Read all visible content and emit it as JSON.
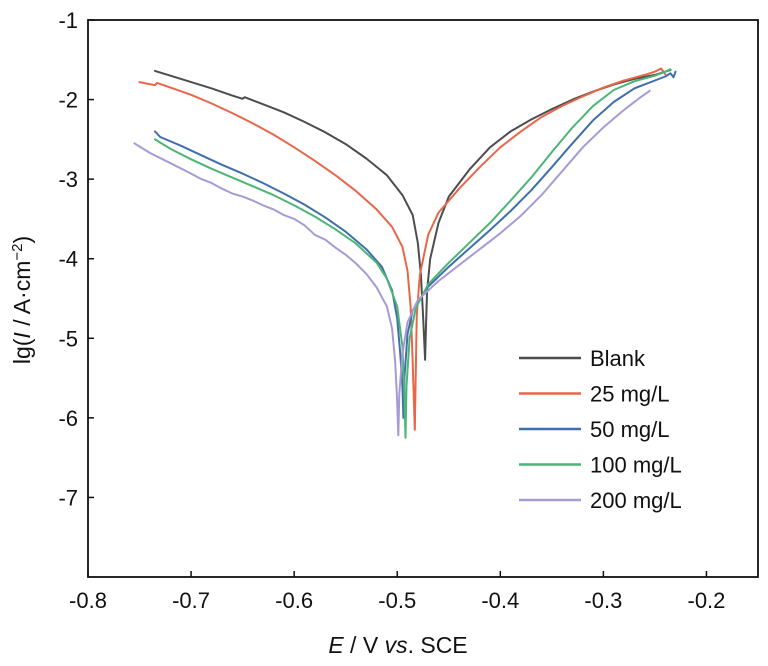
{
  "chart_data": {
    "type": "line",
    "xlabel": {
      "italic": "E",
      "rest1": " / V ",
      "italic2": "vs",
      "rest2": ". SCE"
    },
    "ylabel": {
      "pre": "lg(",
      "italic": "I",
      "mid": " / A·cm",
      "sup": "−2",
      "post": ")"
    },
    "xlim": [
      -0.8,
      -0.15
    ],
    "ylim": [
      -8,
      -1
    ],
    "xticks": [
      -0.8,
      -0.7,
      -0.6,
      -0.5,
      -0.4,
      -0.3,
      -0.2
    ],
    "xtick_labels": [
      "-0.8",
      "-0.7",
      "-0.6",
      "-0.5",
      "-0.4",
      "-0.3",
      "-0.2"
    ],
    "yticks": [
      -1,
      -2,
      -3,
      -4,
      -5,
      -6,
      -7
    ],
    "ytick_labels": [
      "-1",
      "-2",
      "-3",
      "-4",
      "-5",
      "-6",
      "-7"
    ],
    "grid": false,
    "legend_position": "bottom-right",
    "series": [
      {
        "name": "Blank",
        "color": "#4d4d4d",
        "points": [
          [
            -0.735,
            -1.64
          ],
          [
            -0.72,
            -1.7
          ],
          [
            -0.7,
            -1.78
          ],
          [
            -0.68,
            -1.86
          ],
          [
            -0.66,
            -1.95
          ],
          [
            -0.65,
            -1.99
          ],
          [
            -0.648,
            -1.97
          ],
          [
            -0.63,
            -2.06
          ],
          [
            -0.61,
            -2.16
          ],
          [
            -0.59,
            -2.28
          ],
          [
            -0.57,
            -2.41
          ],
          [
            -0.55,
            -2.56
          ],
          [
            -0.53,
            -2.74
          ],
          [
            -0.51,
            -2.95
          ],
          [
            -0.495,
            -3.2
          ],
          [
            -0.485,
            -3.45
          ],
          [
            -0.48,
            -3.8
          ],
          [
            -0.477,
            -4.2
          ],
          [
            -0.475,
            -4.7
          ],
          [
            -0.473,
            -5.27
          ],
          [
            -0.472,
            -4.8
          ],
          [
            -0.471,
            -4.4
          ],
          [
            -0.468,
            -4.0
          ],
          [
            -0.46,
            -3.55
          ],
          [
            -0.45,
            -3.22
          ],
          [
            -0.43,
            -2.88
          ],
          [
            -0.41,
            -2.6
          ],
          [
            -0.39,
            -2.4
          ],
          [
            -0.37,
            -2.25
          ],
          [
            -0.35,
            -2.12
          ],
          [
            -0.33,
            -2.0
          ],
          [
            -0.31,
            -1.9
          ],
          [
            -0.29,
            -1.81
          ],
          [
            -0.27,
            -1.74
          ],
          [
            -0.25,
            -1.69
          ],
          [
            -0.24,
            -1.65
          ],
          [
            -0.235,
            -1.63
          ]
        ]
      },
      {
        "name": "25 mg/L",
        "color": "#e8664a",
        "points": [
          [
            -0.75,
            -1.78
          ],
          [
            -0.735,
            -1.82
          ],
          [
            -0.733,
            -1.79
          ],
          [
            -0.72,
            -1.85
          ],
          [
            -0.7,
            -1.94
          ],
          [
            -0.68,
            -2.05
          ],
          [
            -0.66,
            -2.17
          ],
          [
            -0.64,
            -2.3
          ],
          [
            -0.62,
            -2.44
          ],
          [
            -0.6,
            -2.6
          ],
          [
            -0.58,
            -2.77
          ],
          [
            -0.56,
            -2.95
          ],
          [
            -0.54,
            -3.15
          ],
          [
            -0.52,
            -3.38
          ],
          [
            -0.505,
            -3.6
          ],
          [
            -0.495,
            -3.85
          ],
          [
            -0.49,
            -4.15
          ],
          [
            -0.487,
            -4.6
          ],
          [
            -0.485,
            -5.3
          ],
          [
            -0.483,
            -6.15
          ],
          [
            -0.482,
            -5.4
          ],
          [
            -0.481,
            -4.7
          ],
          [
            -0.478,
            -4.2
          ],
          [
            -0.47,
            -3.7
          ],
          [
            -0.46,
            -3.42
          ],
          [
            -0.44,
            -3.12
          ],
          [
            -0.42,
            -2.85
          ],
          [
            -0.4,
            -2.6
          ],
          [
            -0.38,
            -2.4
          ],
          [
            -0.36,
            -2.22
          ],
          [
            -0.34,
            -2.08
          ],
          [
            -0.32,
            -1.96
          ],
          [
            -0.3,
            -1.85
          ],
          [
            -0.28,
            -1.76
          ],
          [
            -0.26,
            -1.69
          ],
          [
            -0.25,
            -1.65
          ],
          [
            -0.244,
            -1.61
          ],
          [
            -0.24,
            -1.68
          ]
        ]
      },
      {
        "name": "50 mg/L",
        "color": "#3f6faa",
        "points": [
          [
            -0.735,
            -2.4
          ],
          [
            -0.73,
            -2.47
          ],
          [
            -0.71,
            -2.58
          ],
          [
            -0.69,
            -2.7
          ],
          [
            -0.67,
            -2.82
          ],
          [
            -0.65,
            -2.93
          ],
          [
            -0.63,
            -3.05
          ],
          [
            -0.61,
            -3.18
          ],
          [
            -0.59,
            -3.32
          ],
          [
            -0.57,
            -3.48
          ],
          [
            -0.55,
            -3.66
          ],
          [
            -0.53,
            -3.88
          ],
          [
            -0.515,
            -4.1
          ],
          [
            -0.505,
            -4.4
          ],
          [
            -0.5,
            -4.75
          ],
          [
            -0.497,
            -5.2
          ],
          [
            -0.495,
            -5.6
          ],
          [
            -0.494,
            -6.0
          ],
          [
            -0.493,
            -5.5
          ],
          [
            -0.49,
            -4.95
          ],
          [
            -0.485,
            -4.65
          ],
          [
            -0.47,
            -4.35
          ],
          [
            -0.45,
            -4.1
          ],
          [
            -0.43,
            -3.87
          ],
          [
            -0.41,
            -3.64
          ],
          [
            -0.39,
            -3.4
          ],
          [
            -0.37,
            -3.14
          ],
          [
            -0.35,
            -2.85
          ],
          [
            -0.33,
            -2.55
          ],
          [
            -0.31,
            -2.26
          ],
          [
            -0.29,
            -2.03
          ],
          [
            -0.27,
            -1.86
          ],
          [
            -0.25,
            -1.76
          ],
          [
            -0.24,
            -1.71
          ],
          [
            -0.235,
            -1.67
          ],
          [
            -0.232,
            -1.72
          ],
          [
            -0.23,
            -1.65
          ]
        ]
      },
      {
        "name": "100 mg/L",
        "color": "#4cb575",
        "points": [
          [
            -0.735,
            -2.5
          ],
          [
            -0.72,
            -2.62
          ],
          [
            -0.7,
            -2.75
          ],
          [
            -0.68,
            -2.87
          ],
          [
            -0.66,
            -2.98
          ],
          [
            -0.64,
            -3.09
          ],
          [
            -0.62,
            -3.2
          ],
          [
            -0.6,
            -3.33
          ],
          [
            -0.58,
            -3.47
          ],
          [
            -0.56,
            -3.63
          ],
          [
            -0.54,
            -3.81
          ],
          [
            -0.52,
            -4.05
          ],
          [
            -0.51,
            -4.25
          ],
          [
            -0.5,
            -4.6
          ],
          [
            -0.495,
            -5.1
          ],
          [
            -0.493,
            -5.7
          ],
          [
            -0.492,
            -6.25
          ],
          [
            -0.491,
            -5.6
          ],
          [
            -0.488,
            -5.0
          ],
          [
            -0.482,
            -4.62
          ],
          [
            -0.47,
            -4.32
          ],
          [
            -0.45,
            -4.05
          ],
          [
            -0.43,
            -3.8
          ],
          [
            -0.41,
            -3.55
          ],
          [
            -0.39,
            -3.27
          ],
          [
            -0.37,
            -2.98
          ],
          [
            -0.35,
            -2.66
          ],
          [
            -0.33,
            -2.35
          ],
          [
            -0.31,
            -2.08
          ],
          [
            -0.29,
            -1.88
          ],
          [
            -0.27,
            -1.77
          ],
          [
            -0.25,
            -1.7
          ],
          [
            -0.24,
            -1.65
          ],
          [
            -0.235,
            -1.62
          ]
        ]
      },
      {
        "name": "200 mg/L",
        "color": "#a79ad6",
        "points": [
          [
            -0.755,
            -2.55
          ],
          [
            -0.74,
            -2.67
          ],
          [
            -0.72,
            -2.8
          ],
          [
            -0.7,
            -2.93
          ],
          [
            -0.69,
            -3.0
          ],
          [
            -0.68,
            -3.05
          ],
          [
            -0.67,
            -3.12
          ],
          [
            -0.66,
            -3.18
          ],
          [
            -0.65,
            -3.22
          ],
          [
            -0.64,
            -3.27
          ],
          [
            -0.63,
            -3.33
          ],
          [
            -0.62,
            -3.38
          ],
          [
            -0.61,
            -3.45
          ],
          [
            -0.6,
            -3.5
          ],
          [
            -0.59,
            -3.58
          ],
          [
            -0.58,
            -3.7
          ],
          [
            -0.57,
            -3.76
          ],
          [
            -0.56,
            -3.86
          ],
          [
            -0.55,
            -3.95
          ],
          [
            -0.54,
            -4.06
          ],
          [
            -0.53,
            -4.19
          ],
          [
            -0.52,
            -4.36
          ],
          [
            -0.51,
            -4.6
          ],
          [
            -0.505,
            -4.88
          ],
          [
            -0.502,
            -5.3
          ],
          [
            -0.5,
            -5.8
          ],
          [
            -0.499,
            -6.22
          ],
          [
            -0.498,
            -5.7
          ],
          [
            -0.495,
            -5.2
          ],
          [
            -0.49,
            -4.8
          ],
          [
            -0.48,
            -4.52
          ],
          [
            -0.46,
            -4.28
          ],
          [
            -0.44,
            -4.08
          ],
          [
            -0.42,
            -3.88
          ],
          [
            -0.4,
            -3.68
          ],
          [
            -0.38,
            -3.46
          ],
          [
            -0.36,
            -3.2
          ],
          [
            -0.34,
            -2.9
          ],
          [
            -0.32,
            -2.6
          ],
          [
            -0.3,
            -2.35
          ],
          [
            -0.28,
            -2.13
          ],
          [
            -0.265,
            -1.98
          ],
          [
            -0.255,
            -1.89
          ]
        ]
      }
    ]
  }
}
